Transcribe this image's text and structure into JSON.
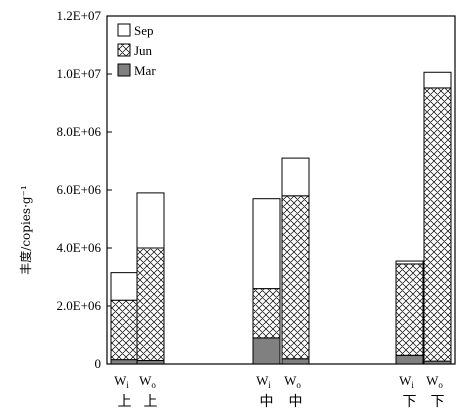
{
  "chart_data": {
    "type": "bar",
    "stacked": true,
    "ylabel": "丰度/copies·g⁻¹",
    "ylim": [
      0,
      12000000
    ],
    "yticks": [
      "0",
      "2.0E+06",
      "4.0E+06",
      "6.0E+06",
      "8.0E+06",
      "1.0E+07",
      "1.2E+07"
    ],
    "ytick_values": [
      0,
      2000000,
      4000000,
      6000000,
      8000000,
      10000000,
      12000000
    ],
    "legend_position": "top-left",
    "categories": [
      {
        "main": "W",
        "sub": "i",
        "group": "上"
      },
      {
        "main": "W",
        "sub": "o",
        "group": "上"
      },
      {
        "main": "W",
        "sub": "i",
        "group": "中"
      },
      {
        "main": "W",
        "sub": "o",
        "group": "中"
      },
      {
        "main": "W",
        "sub": "i",
        "group": "下"
      },
      {
        "main": "W",
        "sub": "o",
        "group": "下"
      }
    ],
    "series": [
      {
        "name": "Mar",
        "fill": "#808080",
        "values": [
          150000,
          120000,
          900000,
          180000,
          300000,
          100000
        ]
      },
      {
        "name": "Jun",
        "fill": "crosshatch",
        "values": [
          2050000,
          3880000,
          1700000,
          5620000,
          3150000,
          9420000
        ]
      },
      {
        "name": "Sep",
        "fill": "#ffffff",
        "values": [
          950000,
          1900000,
          3100000,
          1300000,
          100000,
          540000
        ]
      }
    ],
    "legend_order": [
      "Sep",
      "Jun",
      "Mar"
    ]
  }
}
